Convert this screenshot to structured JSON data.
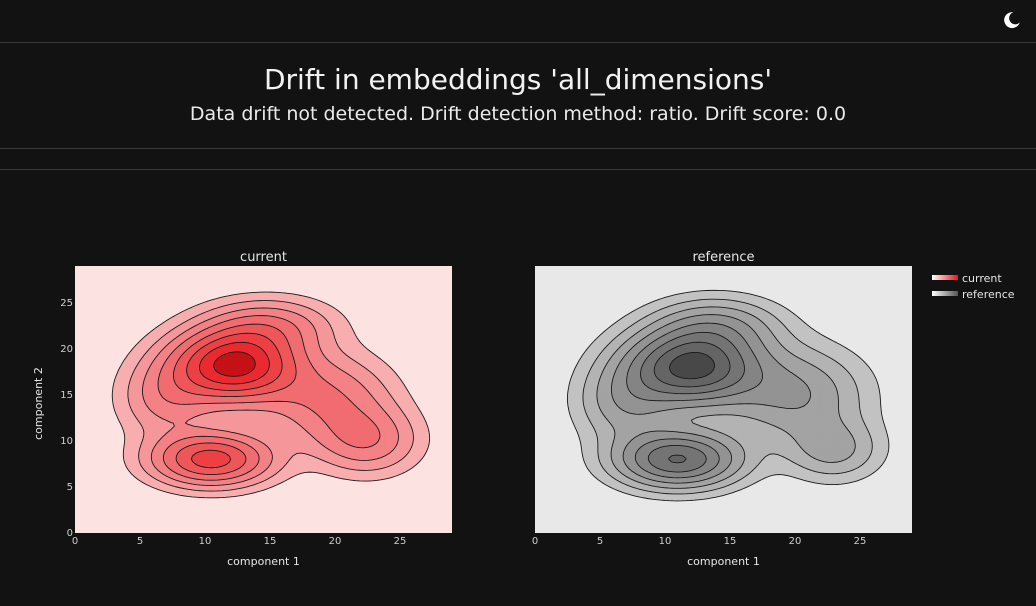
{
  "header": {
    "title": "Drift in embeddings 'all_dimensions'",
    "subtitle": "Data drift not detected. Drift detection method: ratio. Drift score: 0.0"
  },
  "icons": {
    "theme_toggle": "moon-icon"
  },
  "colors": {
    "background": "#121212",
    "current_accent": "#e8141b",
    "current_bg": "#fde2e2",
    "reference_accent": "#555555",
    "reference_bg": "#e8e8e8"
  },
  "chart_data": [
    {
      "type": "contour",
      "title": "current",
      "xlabel": "component 1",
      "ylabel": "component 2",
      "xlim": [
        0,
        29
      ],
      "ylim": [
        0,
        29
      ],
      "xticks": [
        0,
        5,
        10,
        15,
        20,
        25
      ],
      "yticks": [
        0,
        5,
        10,
        15,
        20,
        25
      ],
      "peaks": [
        {
          "x": 12.2,
          "y": 18.2,
          "sx": 3.2,
          "sy": 2.6,
          "a": 1.0
        },
        {
          "x": 10.5,
          "y": 8.0,
          "sx": 3.0,
          "sy": 1.9,
          "a": 0.7
        },
        {
          "x": 19.5,
          "y": 14.5,
          "sx": 3.2,
          "sy": 3.2,
          "a": 0.33
        },
        {
          "x": 22.5,
          "y": 10.0,
          "sx": 2.6,
          "sy": 2.4,
          "a": 0.3
        },
        {
          "x": 7.0,
          "y": 14.5,
          "sx": 2.4,
          "sy": 2.8,
          "a": 0.25
        },
        {
          "x": 15.0,
          "y": 22.5,
          "sx": 3.2,
          "sy": 2.0,
          "a": 0.3
        }
      ],
      "levels": [
        0.06,
        0.13,
        0.22,
        0.33,
        0.46,
        0.6,
        0.75,
        0.9
      ]
    },
    {
      "type": "contour",
      "title": "reference",
      "xlabel": "component 1",
      "ylabel": "",
      "xlim": [
        0,
        29
      ],
      "ylim": [
        0,
        29
      ],
      "xticks": [
        0,
        5,
        10,
        15,
        20,
        25
      ],
      "yticks": [],
      "peaks": [
        {
          "x": 12.0,
          "y": 18.0,
          "sx": 3.4,
          "sy": 2.7,
          "a": 1.0
        },
        {
          "x": 11.0,
          "y": 8.0,
          "sx": 3.1,
          "sy": 2.0,
          "a": 0.8
        },
        {
          "x": 20.0,
          "y": 15.0,
          "sx": 3.5,
          "sy": 3.4,
          "a": 0.35
        },
        {
          "x": 7.0,
          "y": 14.0,
          "sx": 2.5,
          "sy": 2.8,
          "a": 0.28
        },
        {
          "x": 23.0,
          "y": 9.0,
          "sx": 2.4,
          "sy": 2.2,
          "a": 0.25
        },
        {
          "x": 14.0,
          "y": 22.5,
          "sx": 3.2,
          "sy": 2.1,
          "a": 0.3
        }
      ],
      "levels": [
        0.06,
        0.13,
        0.22,
        0.33,
        0.46,
        0.6,
        0.75,
        0.9
      ]
    }
  ],
  "legend": {
    "placement": "top-right",
    "items": [
      {
        "label": "current",
        "color": "#e8141b"
      },
      {
        "label": "reference",
        "color": "#555555"
      }
    ]
  }
}
